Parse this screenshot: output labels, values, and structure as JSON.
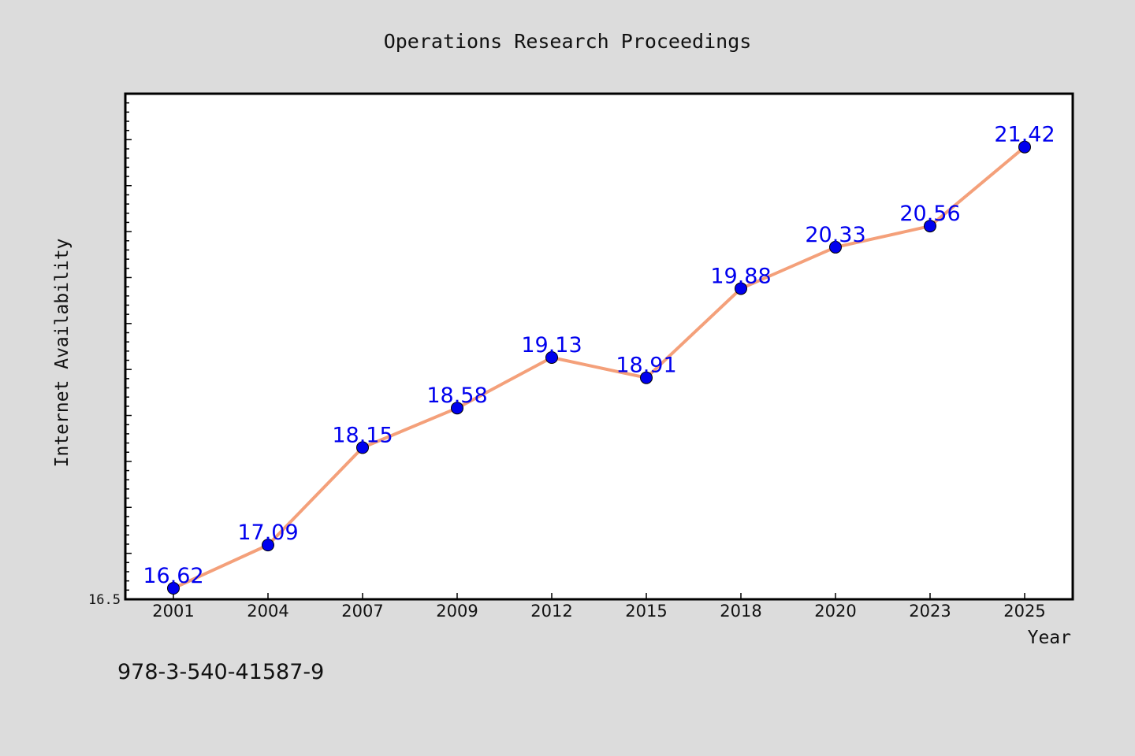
{
  "chart_data": {
    "type": "line",
    "title": "Operations Research Proceedings",
    "xlabel": "Year",
    "ylabel": "Internet Availability",
    "categories": [
      "2001",
      "2004",
      "2007",
      "2009",
      "2012",
      "2015",
      "2018",
      "2020",
      "2023",
      "2025"
    ],
    "series": [
      {
        "values": [
          16.62,
          17.09,
          18.15,
          18.58,
          19.13,
          18.91,
          19.88,
          20.33,
          20.56,
          21.42
        ]
      }
    ],
    "ylim": [
      16.5,
      22.0
    ],
    "y_tick_labels": [
      "16.5"
    ],
    "data_labels": [
      "16.62",
      "17.09",
      "18.15",
      "18.58",
      "19.13",
      "18.91",
      "19.88",
      "20.33",
      "20.56",
      "21.42"
    ],
    "legend": "none",
    "grid": false,
    "footnote": "978-3-540-41587-9",
    "colors": {
      "background": "#dcdcdc",
      "plot_background": "#ffffff",
      "line": "#f4a07a",
      "marker": "#0000ee",
      "data_label": "#0000ee",
      "axis": "#000000"
    }
  }
}
